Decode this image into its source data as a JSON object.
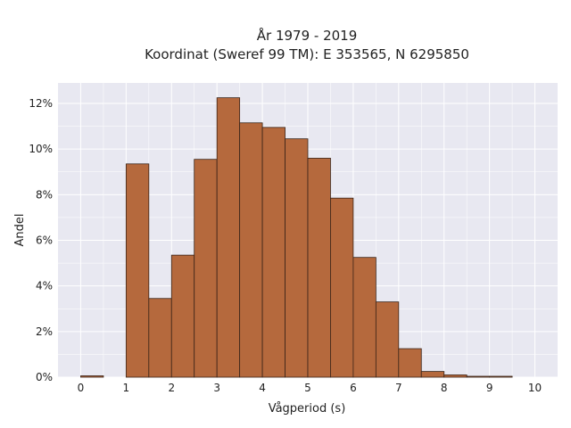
{
  "chart_data": {
    "type": "bar",
    "title_line1": "År 1979 - 2019",
    "title_line2": "Koordinat (Sweref 99 TM): E 353565, N 6295850",
    "xlabel": "Vågperiod (s)",
    "ylabel": "Andel",
    "bin_width": 0.5,
    "bin_starts": [
      0.0,
      0.5,
      1.0,
      1.5,
      2.0,
      2.5,
      3.0,
      3.5,
      4.0,
      4.5,
      5.0,
      5.5,
      6.0,
      6.5,
      7.0,
      7.5,
      8.0,
      8.5,
      9.0,
      9.5
    ],
    "values": [
      0.06,
      0.0,
      9.35,
      3.45,
      5.35,
      9.55,
      12.25,
      11.15,
      10.95,
      10.45,
      9.6,
      7.85,
      5.25,
      3.3,
      1.25,
      0.25,
      0.1,
      0.04,
      0.04,
      0.0
    ],
    "xlim": [
      -0.5,
      10.5
    ],
    "ylim": [
      0,
      12.9
    ],
    "xticks": [
      0,
      1,
      2,
      3,
      4,
      5,
      6,
      7,
      8,
      9,
      10
    ],
    "xtick_labels": [
      "0",
      "1",
      "2",
      "3",
      "4",
      "5",
      "6",
      "7",
      "8",
      "9",
      "10"
    ],
    "yticks": [
      0,
      2,
      4,
      6,
      8,
      10,
      12
    ],
    "ytick_labels": [
      "0%",
      "2%",
      "4%",
      "6%",
      "8%",
      "10%",
      "12%"
    ],
    "grid": true,
    "colors": {
      "bar_fill": "#b5693d",
      "bar_stroke": "#3a2418",
      "plot_bg": "#e8e8f1",
      "grid": "#ffffff"
    }
  }
}
